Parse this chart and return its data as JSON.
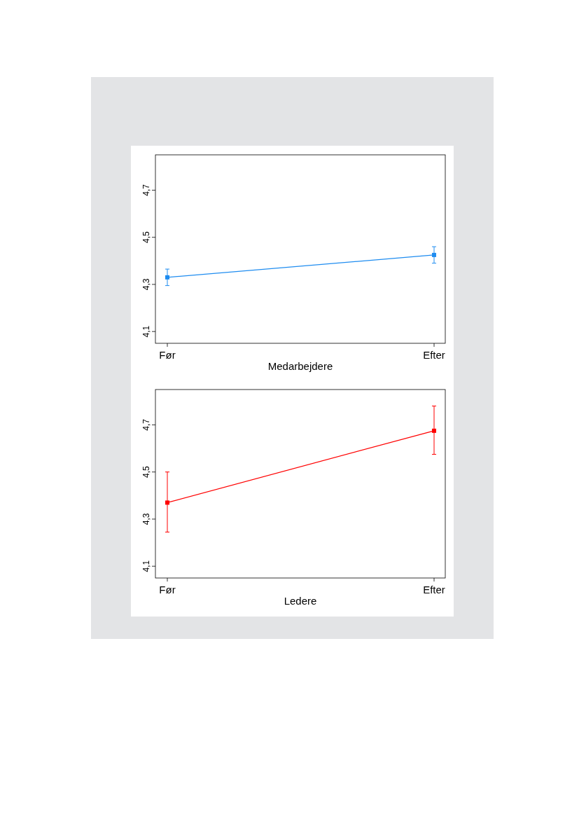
{
  "chart_data": [
    {
      "type": "line",
      "xlabel": "Medarbejdere",
      "categories": [
        "Før",
        "Efter"
      ],
      "ylim": [
        4.05,
        4.85
      ],
      "yticks": [
        {
          "value": 4.1,
          "label": "4,1"
        },
        {
          "value": 4.3,
          "label": "4,3"
        },
        {
          "value": 4.5,
          "label": "4,5"
        },
        {
          "value": 4.7,
          "label": "4,7"
        }
      ],
      "marker": "square",
      "series": [
        {
          "color": "#1e8cf0",
          "values": [
            4.33,
            4.425
          ],
          "errors": [
            [
              4.295,
              4.365
            ],
            [
              4.39,
              4.46
            ]
          ]
        }
      ]
    },
    {
      "type": "line",
      "xlabel": "Ledere",
      "categories": [
        "Før",
        "Efter"
      ],
      "ylim": [
        4.05,
        4.85
      ],
      "yticks": [
        {
          "value": 4.1,
          "label": "4,1"
        },
        {
          "value": 4.3,
          "label": "4,3"
        },
        {
          "value": 4.5,
          "label": "4,5"
        },
        {
          "value": 4.7,
          "label": "4,7"
        }
      ],
      "marker": "square",
      "series": [
        {
          "color": "#ff0000",
          "values": [
            4.37,
            4.675
          ],
          "errors": [
            [
              4.245,
              4.5
            ],
            [
              4.575,
              4.78
            ]
          ]
        }
      ]
    }
  ]
}
